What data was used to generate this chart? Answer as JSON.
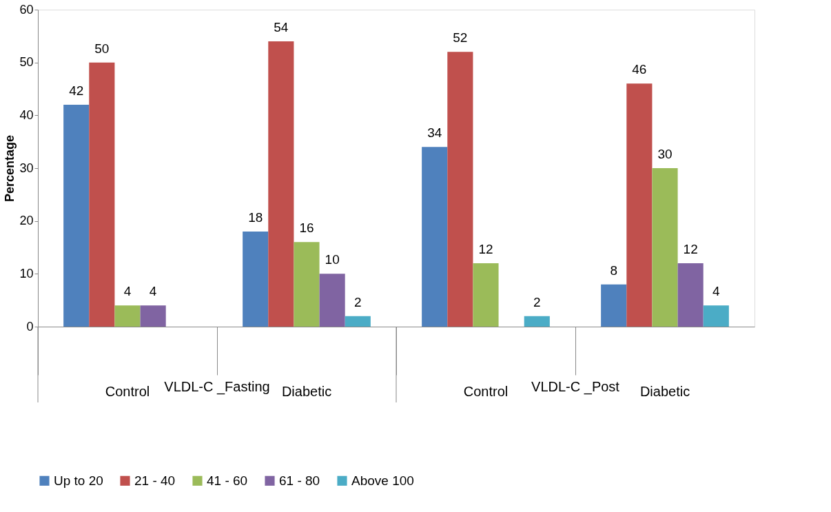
{
  "chart_data": {
    "type": "bar",
    "ylabel": "Percentage",
    "categories": [
      "Control",
      "Diabetic",
      "Control",
      "Diabetic"
    ],
    "series": [
      {
        "name": "Up to 20",
        "color": "#4f81bd",
        "values": [
          42,
          18,
          34,
          8
        ]
      },
      {
        "name": "21 - 40",
        "color": "#c0504d",
        "values": [
          50,
          54,
          52,
          46
        ]
      },
      {
        "name": "41 - 60",
        "color": "#9bbb59",
        "values": [
          4,
          16,
          12,
          30
        ]
      },
      {
        "name": "61 - 80",
        "color": "#8064a2",
        "values": [
          4,
          10,
          null,
          12
        ]
      },
      {
        "name": "Above 100",
        "color": "#4bacc6",
        "values": [
          null,
          2,
          2,
          4
        ]
      }
    ],
    "ylim": [
      0,
      60
    ],
    "yticks": [
      0,
      10,
      20,
      30,
      40,
      50,
      60
    ],
    "annotations": [
      "VLDL-C _Fasting",
      "VLDL-C _Post"
    ],
    "data_labels": true,
    "grid": false,
    "legend": "bottom"
  }
}
